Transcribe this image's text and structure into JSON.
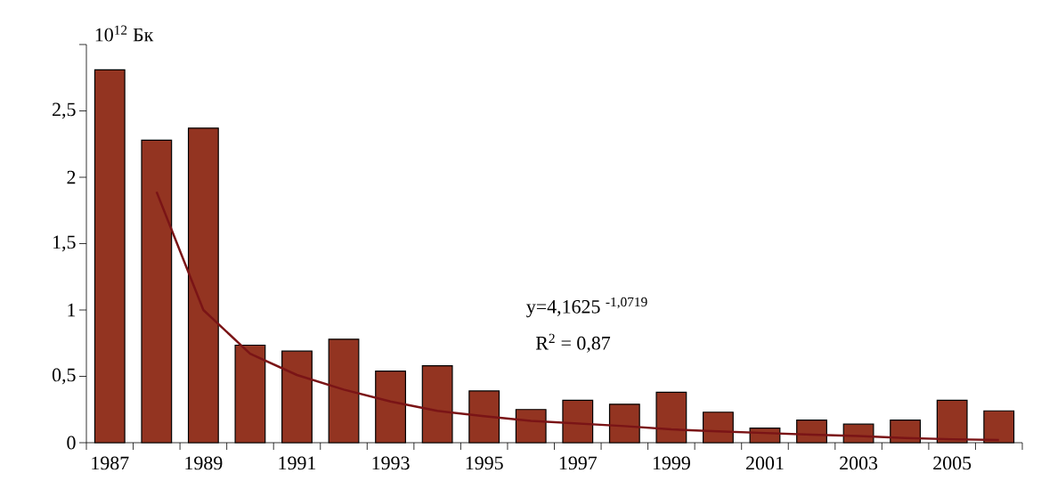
{
  "chart_data": {
    "type": "bar",
    "ylabel": "10$^{12}$ Бк",
    "categories": [
      "1987",
      null,
      "1989",
      null,
      "1991",
      null,
      "1993",
      null,
      "1995",
      null,
      "1997",
      null,
      "1999",
      null,
      "2001",
      null,
      "2003",
      null,
      "2005",
      null
    ],
    "series": [
      {
        "color": "#933421",
        "values": [
          2.81,
          2.28,
          2.37,
          0.735,
          0.69,
          0.78,
          0.54,
          0.58,
          0.39,
          0.25,
          0.32,
          0.29,
          0.38,
          0.23,
          0.11,
          0.17,
          0.14,
          0.17,
          0.32,
          0.24
        ]
      },
      {
        "type": "line",
        "color": "#7a1416",
        "values": [
          null,
          1.89,
          1.0,
          0.67,
          0.51,
          0.4,
          0.31,
          0.24,
          0.2,
          0.165,
          0.145,
          0.125,
          0.1,
          0.085,
          0.073,
          0.06,
          0.05,
          0.036,
          0.026,
          0.02
        ]
      }
    ],
    "ylim": [
      0,
      3
    ],
    "yticks": [
      0,
      {
        "value": 0.5,
        "label": "0,5"
      },
      1,
      {
        "value": 1.5,
        "label": "1,5"
      },
      2,
      {
        "value": 2.5,
        "label": "2,5"
      },
      {
        "value": 3,
        "label": null
      }
    ],
    "annotations": [
      "y=4,1625 $^{-1,0719}$",
      "R$^{2}$ = 0,87"
    ]
  }
}
